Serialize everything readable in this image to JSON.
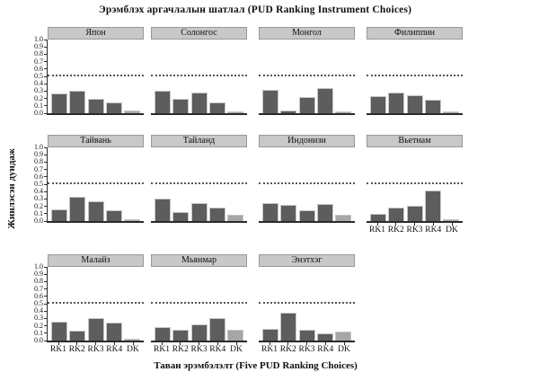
{
  "chart_data": {
    "type": "bar",
    "title": "Эрэмблэх аргачлалын шатлал (PUD Ranking Instrument Choices)",
    "xlabel": "Таван эрэмбэлэлт (Five PUD Ranking Choices)",
    "ylabel": "Жинлэсэн дундаж",
    "categories": [
      "RK1",
      "RK2",
      "RK3",
      "RK4",
      "DK"
    ],
    "ylim": [
      0,
      1.0
    ],
    "yticks": [
      0.0,
      0.1,
      0.2,
      0.3,
      0.4,
      0.5,
      0.6,
      0.7,
      0.8,
      0.9,
      1.0
    ],
    "reference_line_y": 0.5,
    "grid": "dotted horizontal reference line at y=0.5 only",
    "legend": "none",
    "layout_hint": "small-multiples lattice, 4 columns x 3 rows, 11 panels; y tick labels on left column only; x tick labels on bottom panel of each column",
    "panels": [
      {
        "id": "japan",
        "label": "Япон",
        "values": [
          0.27,
          0.31,
          0.19,
          0.15,
          0.04
        ]
      },
      {
        "id": "korea",
        "label": "Солонгос",
        "values": [
          0.3,
          0.2,
          0.28,
          0.15,
          0.02
        ]
      },
      {
        "id": "mongolia",
        "label": "Монгол",
        "values": [
          0.32,
          0.04,
          0.22,
          0.34,
          0.03
        ]
      },
      {
        "id": "philippines",
        "label": "Филиппин",
        "values": [
          0.23,
          0.28,
          0.24,
          0.18,
          0.02
        ]
      },
      {
        "id": "taiwan",
        "label": "Тайвань",
        "values": [
          0.16,
          0.33,
          0.27,
          0.15,
          0.03
        ]
      },
      {
        "id": "thailand",
        "label": "Тайланд",
        "values": [
          0.31,
          0.12,
          0.25,
          0.18,
          0.09
        ]
      },
      {
        "id": "indonesia",
        "label": "Индонизи",
        "values": [
          0.24,
          0.22,
          0.15,
          0.23,
          0.09
        ]
      },
      {
        "id": "vietnam",
        "label": "Вьетнам",
        "values": [
          0.1,
          0.18,
          0.21,
          0.42,
          0.03
        ]
      },
      {
        "id": "malaysia",
        "label": "Малайз",
        "values": [
          0.26,
          0.13,
          0.3,
          0.25,
          0.02
        ]
      },
      {
        "id": "myanmar",
        "label": "Мьянмар",
        "values": [
          0.18,
          0.15,
          0.22,
          0.3,
          0.15
        ]
      },
      {
        "id": "india",
        "label": "Энэтхэг",
        "values": [
          0.16,
          0.38,
          0.15,
          0.1,
          0.12
        ]
      }
    ],
    "colors": {
      "bar": "#5d5d5d",
      "dk_bar": "#a6a6a6",
      "bar_border": "#c6c6c6",
      "header_bg": "#c8c8c8",
      "header_border": "#989898",
      "axis": "#2a2a2a"
    }
  }
}
